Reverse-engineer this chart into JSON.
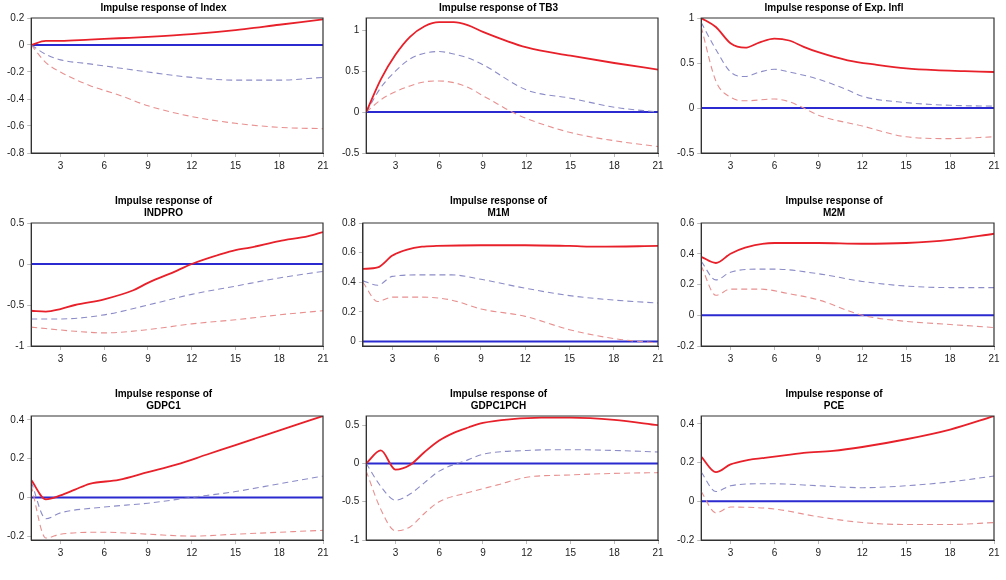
{
  "chart_data": [
    {
      "type": "line",
      "title": "Impulse response of Index",
      "xlim": [
        1,
        21
      ],
      "xticks": [
        3,
        6,
        9,
        12,
        15,
        18,
        21
      ],
      "ylim": [
        -0.8,
        0.2
      ],
      "yticks": [
        -0.8,
        -0.6,
        -0.4,
        -0.2,
        0,
        0.2
      ],
      "grid": false,
      "legend": false,
      "ref_lines": [
        {
          "axis": "y",
          "value": 0,
          "color": "#2a2ad0"
        }
      ],
      "series": [
        {
          "color": "#e8202a",
          "line_style": "solid",
          "x": [
            1,
            2,
            3,
            5,
            7,
            9,
            12,
            15,
            18,
            21
          ],
          "values": [
            0,
            0.03,
            0.03,
            0.04,
            0.05,
            0.06,
            0.08,
            0.11,
            0.15,
            0.19
          ]
        },
        {
          "color": "#8c8cc8",
          "line_style": "dashed",
          "x": [
            1,
            2,
            3,
            5,
            7,
            9,
            12,
            15,
            18,
            21
          ],
          "values": [
            0,
            -0.07,
            -0.11,
            -0.14,
            -0.17,
            -0.2,
            -0.24,
            -0.26,
            -0.26,
            -0.24
          ]
        },
        {
          "color": "#e89090",
          "line_style": "dashed",
          "x": [
            1,
            2,
            3,
            5,
            7,
            9,
            12,
            15,
            18,
            21
          ],
          "values": [
            0,
            -0.13,
            -0.2,
            -0.3,
            -0.37,
            -0.45,
            -0.53,
            -0.58,
            -0.61,
            -0.62
          ]
        }
      ]
    },
    {
      "type": "line",
      "title": "Impulse response of TB3",
      "xlim": [
        1,
        21
      ],
      "xticks": [
        3,
        6,
        9,
        12,
        15,
        18,
        21
      ],
      "ylim": [
        -0.5,
        1.15
      ],
      "yticks": [
        -0.5,
        0,
        0.5,
        1
      ],
      "grid": false,
      "legend": false,
      "ref_lines": [
        {
          "axis": "y",
          "value": 0,
          "color": "#2a2ad0"
        }
      ],
      "series": [
        {
          "color": "#e8202a",
          "line_style": "solid",
          "x": [
            1,
            2,
            3,
            4,
            5,
            6,
            7,
            8,
            9,
            12,
            15,
            18,
            21
          ],
          "values": [
            0,
            0.4,
            0.7,
            0.92,
            1.05,
            1.1,
            1.1,
            1.06,
            0.98,
            0.79,
            0.69,
            0.6,
            0.52
          ]
        },
        {
          "color": "#8c8cc8",
          "line_style": "dashed",
          "x": [
            1,
            2,
            3,
            4,
            5,
            6,
            7,
            8,
            9,
            12,
            15,
            18,
            21
          ],
          "values": [
            0,
            0.3,
            0.5,
            0.65,
            0.72,
            0.74,
            0.71,
            0.66,
            0.58,
            0.27,
            0.17,
            0.06,
            0
          ]
        },
        {
          "color": "#e89090",
          "line_style": "dashed",
          "x": [
            1,
            2,
            3,
            4,
            5,
            6,
            7,
            8,
            9,
            10,
            11,
            12,
            15,
            18,
            21
          ],
          "values": [
            0,
            0.15,
            0.25,
            0.32,
            0.37,
            0.38,
            0.36,
            0.3,
            0.2,
            0.1,
            0,
            -0.08,
            -0.25,
            -0.35,
            -0.42
          ]
        }
      ]
    },
    {
      "type": "line",
      "title": "Impulse response of Exp. Infl",
      "xlim": [
        1,
        21
      ],
      "xticks": [
        3,
        6,
        9,
        12,
        15,
        18,
        21
      ],
      "ylim": [
        -0.5,
        1
      ],
      "yticks": [
        -0.5,
        0,
        0.5,
        1
      ],
      "grid": false,
      "legend": false,
      "ref_lines": [
        {
          "axis": "y",
          "value": 0,
          "color": "#2a2ad0"
        }
      ],
      "series": [
        {
          "color": "#e8202a",
          "line_style": "solid",
          "x": [
            1,
            2,
            3,
            4,
            5,
            6,
            7,
            8,
            9,
            11,
            13,
            15,
            17,
            19,
            21
          ],
          "values": [
            1,
            0.9,
            0.72,
            0.67,
            0.73,
            0.77,
            0.75,
            0.68,
            0.62,
            0.53,
            0.48,
            0.44,
            0.42,
            0.41,
            0.4
          ]
        },
        {
          "color": "#8c8cc8",
          "line_style": "dashed",
          "x": [
            1,
            2,
            3,
            4,
            5,
            6,
            7,
            9,
            11,
            12,
            15,
            18,
            21
          ],
          "values": [
            0.95,
            0.65,
            0.4,
            0.35,
            0.4,
            0.43,
            0.4,
            0.32,
            0.2,
            0.13,
            0.06,
            0.03,
            0.02
          ]
        },
        {
          "color": "#e89090",
          "line_style": "dashed",
          "x": [
            1,
            2,
            3,
            4,
            6,
            7,
            8,
            9,
            12,
            15,
            18,
            21
          ],
          "values": [
            0.9,
            0.3,
            0.12,
            0.08,
            0.1,
            0.07,
            0,
            -0.08,
            -0.2,
            -0.32,
            -0.34,
            -0.32
          ]
        }
      ]
    },
    {
      "type": "line",
      "title": "Impulse response of\nINDPRO",
      "xlim": [
        1,
        21
      ],
      "xticks": [
        3,
        6,
        9,
        12,
        15,
        18,
        21
      ],
      "ylim": [
        -1,
        0.5
      ],
      "yticks": [
        -1,
        -0.5,
        0,
        0.5
      ],
      "grid": false,
      "legend": false,
      "ref_lines": [
        {
          "axis": "y",
          "value": 0,
          "color": "#2a2ad0"
        }
      ],
      "series": [
        {
          "color": "#e8202a",
          "line_style": "solid",
          "x": [
            1,
            2,
            3,
            4,
            6,
            8,
            9,
            11,
            12,
            14,
            15,
            16,
            18,
            20,
            21
          ],
          "values": [
            -0.57,
            -0.58,
            -0.55,
            -0.5,
            -0.43,
            -0.32,
            -0.23,
            -0.08,
            0,
            0.12,
            0.17,
            0.2,
            0.28,
            0.34,
            0.39
          ]
        },
        {
          "color": "#8c8cc8",
          "line_style": "dashed",
          "x": [
            1,
            3,
            6,
            9,
            12,
            15,
            18,
            21
          ],
          "values": [
            -0.67,
            -0.67,
            -0.62,
            -0.5,
            -0.37,
            -0.27,
            -0.17,
            -0.09
          ]
        },
        {
          "color": "#e89090",
          "line_style": "dashed",
          "x": [
            1,
            4,
            6,
            9,
            12,
            15,
            18,
            21
          ],
          "values": [
            -0.77,
            -0.82,
            -0.84,
            -0.8,
            -0.73,
            -0.68,
            -0.62,
            -0.57
          ]
        }
      ]
    },
    {
      "type": "line",
      "title": "Impulse response of\nM1M",
      "xlim": [
        1,
        21
      ],
      "xticks": [
        3,
        6,
        9,
        12,
        15,
        18,
        21
      ],
      "ylim": [
        -0.03,
        0.8
      ],
      "yticks": [
        0,
        0.2,
        0.4,
        0.6,
        0.8
      ],
      "grid": false,
      "legend": false,
      "ref_lines": [
        {
          "axis": "y",
          "value": 0,
          "color": "#2a2ad0"
        }
      ],
      "series": [
        {
          "color": "#e8202a",
          "line_style": "solid",
          "x": [
            1,
            2,
            3,
            4,
            5,
            6,
            9,
            12,
            15,
            17,
            21
          ],
          "values": [
            0.49,
            0.5,
            0.58,
            0.62,
            0.64,
            0.645,
            0.65,
            0.65,
            0.645,
            0.64,
            0.645
          ]
        },
        {
          "color": "#8c8cc8",
          "line_style": "dashed",
          "x": [
            1,
            2,
            3,
            5,
            7,
            9,
            12,
            15,
            18,
            21
          ],
          "values": [
            0.41,
            0.38,
            0.44,
            0.45,
            0.45,
            0.42,
            0.36,
            0.31,
            0.28,
            0.26
          ]
        },
        {
          "color": "#e89090",
          "line_style": "dashed",
          "x": [
            1,
            2,
            3,
            5,
            7,
            9,
            12,
            15,
            18,
            21
          ],
          "values": [
            0.4,
            0.27,
            0.3,
            0.3,
            0.28,
            0.22,
            0.17,
            0.08,
            0.02,
            -0.01
          ]
        }
      ]
    },
    {
      "type": "line",
      "title": "Impulse response of\nM2M",
      "xlim": [
        1,
        21
      ],
      "xticks": [
        3,
        6,
        9,
        12,
        15,
        18,
        21
      ],
      "ylim": [
        -0.2,
        0.6
      ],
      "yticks": [
        -0.2,
        0,
        0.2,
        0.4,
        0.6
      ],
      "grid": false,
      "legend": false,
      "ref_lines": [
        {
          "axis": "y",
          "value": 0,
          "color": "#2a2ad0"
        }
      ],
      "series": [
        {
          "color": "#e8202a",
          "line_style": "solid",
          "x": [
            1,
            2,
            3,
            4,
            6,
            9,
            12,
            15,
            18,
            21
          ],
          "values": [
            0.38,
            0.34,
            0.4,
            0.44,
            0.47,
            0.47,
            0.465,
            0.47,
            0.49,
            0.53
          ]
        },
        {
          "color": "#8c8cc8",
          "line_style": "dashed",
          "x": [
            1,
            2,
            3,
            5,
            6,
            9,
            12,
            15,
            18,
            21
          ],
          "values": [
            0.35,
            0.23,
            0.28,
            0.3,
            0.3,
            0.27,
            0.22,
            0.19,
            0.18,
            0.18
          ]
        },
        {
          "color": "#e89090",
          "line_style": "dashed",
          "x": [
            1,
            2,
            3,
            5,
            7,
            9,
            12,
            15,
            18,
            21
          ],
          "values": [
            0.32,
            0.13,
            0.17,
            0.17,
            0.14,
            0.1,
            0,
            -0.04,
            -0.06,
            -0.08
          ]
        }
      ]
    },
    {
      "type": "line",
      "title": "Impulse response of\nGDPC1",
      "xlim": [
        1,
        21
      ],
      "xticks": [
        3,
        6,
        9,
        12,
        15,
        18,
        21
      ],
      "ylim": [
        -0.22,
        0.42
      ],
      "yticks": [
        -0.2,
        0,
        0.2,
        0.4
      ],
      "grid": false,
      "legend": false,
      "ref_lines": [
        {
          "axis": "y",
          "value": 0,
          "color": "#2a2ad0"
        }
      ],
      "series": [
        {
          "color": "#e8202a",
          "line_style": "solid",
          "x": [
            1,
            2,
            3,
            4,
            5,
            7,
            9,
            11,
            13,
            15,
            17,
            19,
            21
          ],
          "values": [
            0.09,
            -0.01,
            0.01,
            0.04,
            0.07,
            0.09,
            0.13,
            0.17,
            0.22,
            0.27,
            0.32,
            0.37,
            0.42
          ]
        },
        {
          "color": "#8c8cc8",
          "line_style": "dashed",
          "x": [
            1,
            2,
            3,
            6,
            9,
            12,
            15,
            18,
            21
          ],
          "values": [
            0.08,
            -0.11,
            -0.08,
            -0.05,
            -0.03,
            0,
            0.03,
            0.07,
            0.11
          ]
        },
        {
          "color": "#e89090",
          "line_style": "dashed",
          "x": [
            1,
            2,
            3,
            6,
            9,
            12,
            15,
            18,
            21
          ],
          "values": [
            0.06,
            -0.21,
            -0.19,
            -0.18,
            -0.19,
            -0.2,
            -0.19,
            -0.18,
            -0.17
          ]
        }
      ]
    },
    {
      "type": "line",
      "title": "Impulse response of\nGDPC1PCH",
      "xlim": [
        1,
        21
      ],
      "xticks": [
        3,
        6,
        9,
        12,
        15,
        18,
        21
      ],
      "ylim": [
        -1,
        0.62
      ],
      "yticks": [
        -1,
        -0.5,
        0,
        0.5
      ],
      "grid": false,
      "legend": false,
      "ref_lines": [
        {
          "axis": "y",
          "value": 0,
          "color": "#2a2ad0"
        }
      ],
      "series": [
        {
          "color": "#e8202a",
          "line_style": "solid",
          "x": [
            1,
            2,
            3,
            4,
            5,
            6,
            7,
            8,
            9,
            11,
            13,
            15,
            18,
            21
          ],
          "values": [
            0,
            0.17,
            -0.08,
            -0.02,
            0.15,
            0.3,
            0.4,
            0.47,
            0.53,
            0.58,
            0.6,
            0.6,
            0.57,
            0.5
          ]
        },
        {
          "color": "#8c8cc8",
          "line_style": "dashed",
          "x": [
            1,
            2,
            3,
            4,
            5,
            6,
            8,
            9,
            12,
            15,
            18,
            21
          ],
          "values": [
            0,
            -0.3,
            -0.48,
            -0.4,
            -0.25,
            -0.1,
            0.05,
            0.12,
            0.17,
            0.18,
            0.17,
            0.15
          ]
        },
        {
          "color": "#e89090",
          "line_style": "dashed",
          "x": [
            1,
            2,
            3,
            4,
            5,
            6,
            8,
            10,
            12,
            15,
            18,
            21
          ],
          "values": [
            -0.1,
            -0.6,
            -0.88,
            -0.83,
            -0.65,
            -0.5,
            -0.38,
            -0.28,
            -0.18,
            -0.15,
            -0.13,
            -0.12
          ]
        }
      ]
    },
    {
      "type": "line",
      "title": "Impulse response of\nPCE",
      "xlim": [
        1,
        21
      ],
      "xticks": [
        3,
        6,
        9,
        12,
        15,
        18,
        21
      ],
      "ylim": [
        -0.2,
        0.44
      ],
      "yticks": [
        -0.2,
        0,
        0.2,
        0.4
      ],
      "grid": false,
      "legend": false,
      "ref_lines": [
        {
          "axis": "y",
          "value": 0,
          "color": "#2a2ad0"
        }
      ],
      "series": [
        {
          "color": "#e8202a",
          "line_style": "solid",
          "x": [
            1,
            2,
            3,
            4,
            6,
            8,
            10,
            12,
            15,
            18,
            21
          ],
          "values": [
            0.23,
            0.15,
            0.19,
            0.21,
            0.23,
            0.25,
            0.26,
            0.28,
            0.32,
            0.37,
            0.44
          ]
        },
        {
          "color": "#8c8cc8",
          "line_style": "dashed",
          "x": [
            1,
            2,
            3,
            5,
            6,
            9,
            12,
            15,
            18,
            21
          ],
          "values": [
            0.15,
            0.05,
            0.08,
            0.09,
            0.09,
            0.08,
            0.07,
            0.08,
            0.1,
            0.13
          ]
        },
        {
          "color": "#e89090",
          "line_style": "dashed",
          "x": [
            1,
            2,
            3,
            6,
            9,
            12,
            15,
            18,
            21
          ],
          "values": [
            0.05,
            -0.06,
            -0.03,
            -0.04,
            -0.08,
            -0.11,
            -0.12,
            -0.12,
            -0.11
          ]
        }
      ]
    }
  ]
}
